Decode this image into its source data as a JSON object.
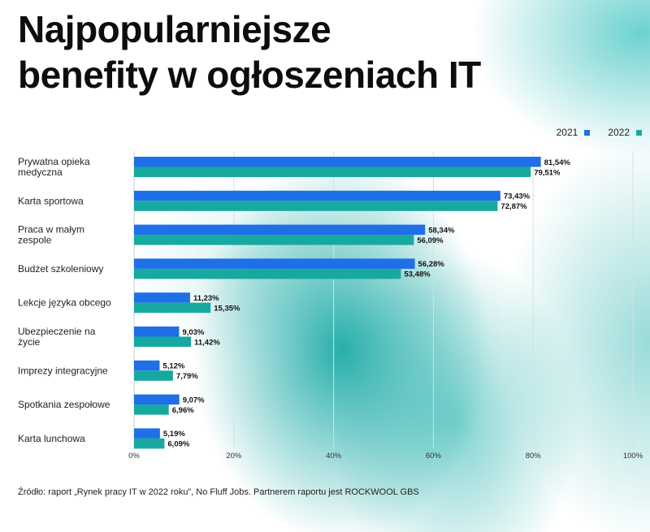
{
  "title_lines": [
    "Najpopularniejsze",
    "benefity w ogłoszeniach IT"
  ],
  "legend": [
    {
      "label": "2021",
      "color": "#1f6fe8"
    },
    {
      "label": "2022",
      "color": "#17a9a0"
    }
  ],
  "source": "Źródło: raport „Rynek pracy IT w 2022 roku”, No Fluff Jobs. Partnerem raportu jest ROCKWOOL GBS",
  "chart_data": {
    "type": "bar",
    "orientation": "horizontal",
    "title": "Najpopularniejsze benefity w ogłoszeniach IT",
    "categories": [
      [
        "Prywatna opieka",
        "medyczna"
      ],
      [
        "Karta sportowa"
      ],
      [
        "Praca w małym",
        "zespole"
      ],
      [
        "Budżet szkoleniowy"
      ],
      [
        "Lekcje języka obcego"
      ],
      [
        "Ubezpieczenie na",
        "życie"
      ],
      [
        "Imprezy integracyjne"
      ],
      [
        "Spotkania zespołowe"
      ],
      [
        "Karta lunchowa"
      ]
    ],
    "series": [
      {
        "name": "2021",
        "color": "#1f6fe8",
        "values": [
          81.54,
          73.43,
          58.34,
          56.28,
          11.23,
          9.03,
          5.12,
          9.07,
          5.19
        ],
        "labels": [
          "81,54%",
          "73,43%",
          "58,34%",
          "56,28%",
          "11,23%",
          "9,03%",
          "5,12%",
          "9,07%",
          "5,19%"
        ]
      },
      {
        "name": "2022",
        "color": "#17a9a0",
        "values": [
          79.51,
          72.87,
          56.09,
          53.48,
          15.35,
          11.42,
          7.79,
          6.96,
          6.09
        ],
        "labels": [
          "79,51%",
          "72,87%",
          "56,09%",
          "53,48%",
          "15,35%",
          "11,42%",
          "7,79%",
          "6,96%",
          "6,09%"
        ]
      }
    ],
    "xlim": [
      0,
      100
    ],
    "xticks": [
      0,
      20,
      40,
      60,
      80,
      100
    ],
    "xtick_labels": [
      "0%",
      "20%",
      "40%",
      "60%",
      "80%",
      "100%"
    ],
    "grid": true,
    "legend_position": "top-right"
  }
}
